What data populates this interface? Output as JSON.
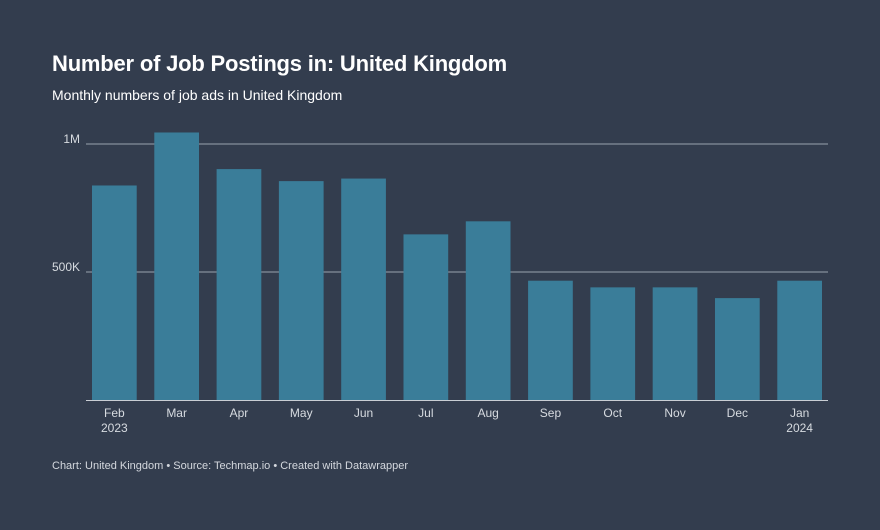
{
  "header": {
    "title": "Number of Job Postings in: United Kingdom",
    "subtitle": "Monthly numbers of job ads in United Kingdom"
  },
  "footer": {
    "text": "Chart: United Kingdom • Source: Techmap.io • Created with Datawrapper"
  },
  "colors": {
    "background": "#333d4e",
    "bar": "#3a7d99",
    "gridline": "#9aa3ad",
    "tick_text": "#d7dbe0"
  },
  "chart_data": {
    "type": "bar",
    "title": "Number of Job Postings in: United Kingdom",
    "subtitle": "Monthly numbers of job ads in United Kingdom",
    "categories": [
      "Feb\n2023",
      "Mar",
      "Apr",
      "May",
      "Jun",
      "Jul",
      "Aug",
      "Sep",
      "Oct",
      "Nov",
      "Dec",
      "Jan\n2024"
    ],
    "values": [
      838000,
      1045000,
      902000,
      855000,
      865000,
      647000,
      698000,
      466000,
      440000,
      440000,
      398000,
      466000
    ],
    "ylim": [
      0,
      1000000
    ],
    "yticks": [
      500000,
      1000000
    ],
    "ytick_labels": [
      "500K",
      "1M"
    ],
    "xlabel": "",
    "ylabel": "",
    "grid": true,
    "legend": "none"
  }
}
